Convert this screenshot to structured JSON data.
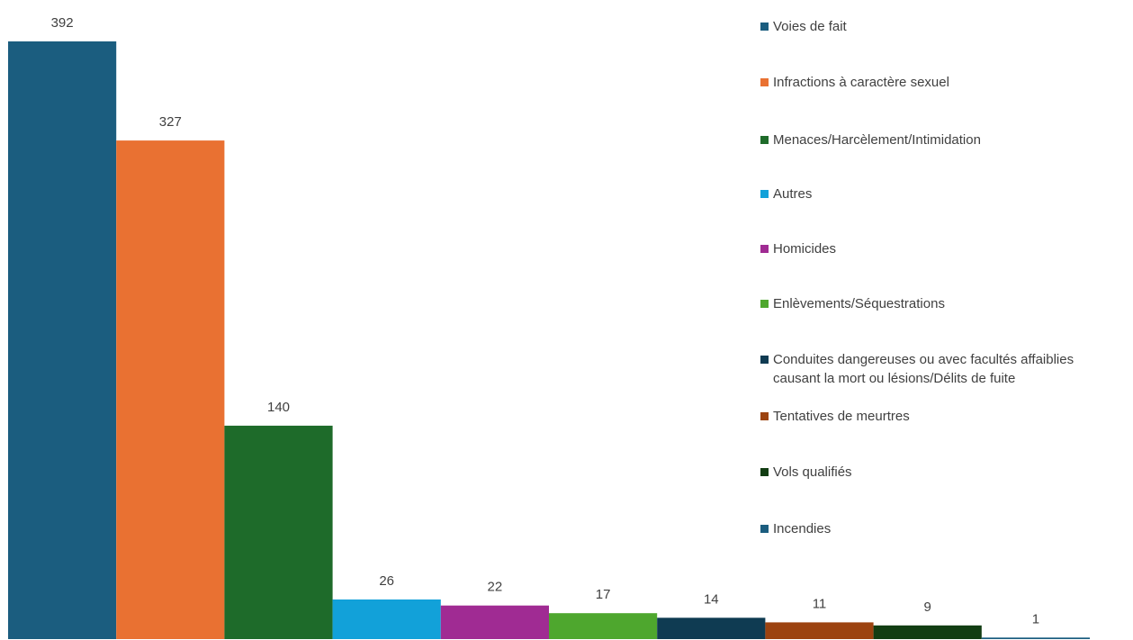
{
  "chart_data": {
    "type": "bar",
    "categories": [
      "Voies de fait",
      "Infractions à caractère sexuel",
      "Menaces/Harcèlement/Intimidation",
      "Autres",
      "Homicides",
      "Enlèvements/Séquestrations",
      "Conduites dangereuses ou avec facultés affaiblies\ncausant la mort ou lésions/Délits de fuite",
      "Tentatives de meurtres",
      "Vols qualifiés",
      "Incendies"
    ],
    "values": [
      392,
      327,
      140,
      26,
      22,
      17,
      14,
      11,
      9,
      1
    ],
    "colors": [
      "#1b5d7f",
      "#e97132",
      "#1e6b2a",
      "#12a1d9",
      "#a02b93",
      "#4ea72e",
      "#0f3b52",
      "#9c4310",
      "#123d13",
      "#1b5d7f"
    ],
    "data_labels": [
      "392",
      "327",
      "140",
      "26",
      "22",
      "17",
      "14",
      "11",
      "9",
      "1"
    ],
    "ylim": [
      0,
      392
    ],
    "grid": false,
    "legend_position": "right"
  }
}
